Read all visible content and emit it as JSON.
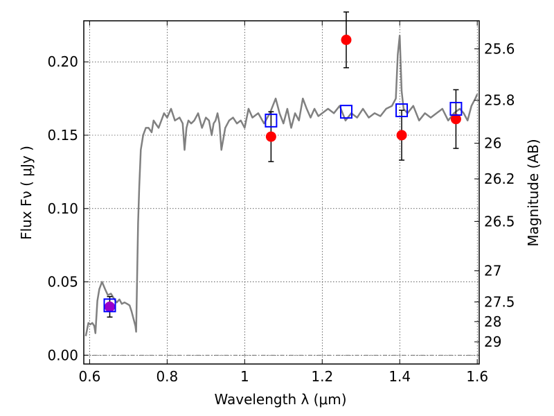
{
  "chart_data": {
    "type": "scatter",
    "xlabel": "Wavelength  λ (μm)",
    "ylabel": "Flux  Fν  ( μJy )",
    "y2label": "Magnitude (AB)",
    "xlim": [
      0.585,
      1.605
    ],
    "ylim": [
      -0.006,
      0.228
    ],
    "grid": true,
    "x_ticks": [
      0.6,
      0.8,
      1.0,
      1.2,
      1.4,
      1.6
    ],
    "x_tick_labels": [
      "0.6",
      "0.8",
      "1",
      "1.2",
      "1.4",
      "1.6"
    ],
    "y_ticks": [
      0.0,
      0.05,
      0.1,
      0.15,
      0.2
    ],
    "y_tick_labels": [
      "0.00",
      "0.05",
      "0.10",
      "0.15",
      "0.20"
    ],
    "mag_ticks": [
      25.6,
      25.8,
      26,
      26.2,
      26.5,
      27,
      27.5,
      28,
      29
    ],
    "mag_tick_labels": [
      "25.6",
      "25.8",
      "26",
      "26.2",
      "26.5",
      "27",
      "27.5",
      "28",
      "29"
    ],
    "series": [
      {
        "kind": "line",
        "color": "#808080",
        "x": [
          0.59,
          0.597,
          0.602,
          0.607,
          0.612,
          0.615,
          0.62,
          0.625,
          0.632,
          0.64,
          0.647,
          0.655,
          0.662,
          0.67,
          0.677,
          0.683,
          0.69,
          0.697,
          0.703,
          0.708,
          0.713,
          0.718,
          0.72,
          0.725,
          0.728,
          0.732,
          0.738,
          0.745,
          0.752,
          0.76,
          0.765,
          0.77,
          0.778,
          0.785,
          0.792,
          0.8,
          0.81,
          0.82,
          0.832,
          0.84,
          0.845,
          0.85,
          0.855,
          0.862,
          0.87,
          0.88,
          0.89,
          0.9,
          0.908,
          0.915,
          0.92,
          0.925,
          0.93,
          0.935,
          0.94,
          0.95,
          0.96,
          0.97,
          0.98,
          0.99,
          1.0,
          1.01,
          1.02,
          1.035,
          1.05,
          1.065,
          1.08,
          1.09,
          1.1,
          1.11,
          1.12,
          1.13,
          1.14,
          1.15,
          1.16,
          1.17,
          1.18,
          1.19,
          1.2,
          1.215,
          1.23,
          1.245,
          1.26,
          1.275,
          1.29,
          1.305,
          1.32,
          1.335,
          1.35,
          1.365,
          1.38,
          1.39,
          1.395,
          1.4,
          1.405,
          1.41,
          1.42,
          1.435,
          1.45,
          1.465,
          1.48,
          1.495,
          1.51,
          1.525,
          1.54,
          1.555,
          1.565,
          1.575,
          1.585,
          1.595,
          1.6
        ],
        "y": [
          0.013,
          0.022,
          0.021,
          0.022,
          0.02,
          0.015,
          0.037,
          0.045,
          0.05,
          0.045,
          0.041,
          0.042,
          0.039,
          0.036,
          0.038,
          0.035,
          0.036,
          0.035,
          0.034,
          0.03,
          0.025,
          0.02,
          0.016,
          0.09,
          0.115,
          0.14,
          0.15,
          0.155,
          0.155,
          0.152,
          0.16,
          0.158,
          0.155,
          0.16,
          0.165,
          0.162,
          0.168,
          0.16,
          0.162,
          0.158,
          0.14,
          0.155,
          0.16,
          0.158,
          0.16,
          0.165,
          0.155,
          0.162,
          0.16,
          0.15,
          0.158,
          0.16,
          0.165,
          0.158,
          0.14,
          0.155,
          0.16,
          0.162,
          0.158,
          0.16,
          0.155,
          0.168,
          0.162,
          0.165,
          0.158,
          0.165,
          0.175,
          0.165,
          0.158,
          0.168,
          0.155,
          0.165,
          0.16,
          0.175,
          0.168,
          0.162,
          0.168,
          0.163,
          0.165,
          0.168,
          0.165,
          0.17,
          0.16,
          0.165,
          0.162,
          0.168,
          0.162,
          0.165,
          0.163,
          0.168,
          0.17,
          0.175,
          0.205,
          0.218,
          0.18,
          0.168,
          0.165,
          0.17,
          0.16,
          0.165,
          0.162,
          0.165,
          0.168,
          0.16,
          0.165,
          0.168,
          0.165,
          0.16,
          0.17,
          0.175,
          0.178
        ]
      },
      {
        "kind": "markers",
        "marker": "circle",
        "color": "#ff0000",
        "x": [
          0.652,
          1.068,
          1.262,
          1.405,
          1.545
        ],
        "y": [
          0.033,
          0.149,
          0.215,
          0.15,
          0.161
        ],
        "yerr": [
          0.007,
          0.017,
          0.019,
          0.017,
          0.02
        ]
      },
      {
        "kind": "markers",
        "marker": "open-square",
        "color": "#0000ff",
        "x": [
          0.652,
          1.068,
          1.262,
          1.405,
          1.545
        ],
        "y": [
          0.034,
          0.16,
          0.166,
          0.167,
          0.168
        ]
      }
    ],
    "overlap_marker": {
      "color": "#9900cc",
      "x": 0.652,
      "y": 0.033
    }
  }
}
